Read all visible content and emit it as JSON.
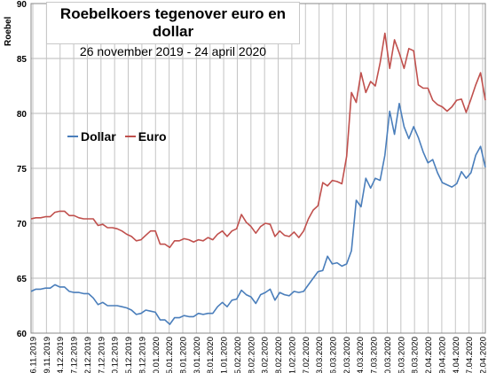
{
  "chart_data": {
    "type": "line",
    "title": "Roebelkoers tegenover euro en dollar",
    "subtitle": "26 november  2019 - 24 april 2020",
    "ylabel": "Roebel",
    "xlabel": "",
    "ylim": [
      60,
      90
    ],
    "yticks": [
      60,
      65,
      70,
      75,
      80,
      85,
      90
    ],
    "grid": true,
    "legend": "left, inside plot",
    "xtick_labels": [
      "26.11.2019",
      "29.11.2019",
      "04.12.2019",
      "07.12.2019",
      "12.12.2019",
      "17.12.2019",
      "20.12.2019",
      "25.12.2019",
      "28.12.2019",
      "10.01.2020",
      "15.01.2020",
      "18.01.2020",
      "23.01.2020",
      "28.01.2020",
      "31.01.2020",
      "05.02.2020",
      "08.02.2020",
      "13.02.2020",
      "18.02.2020",
      "21.02.2020",
      "27.02.2020",
      "03.03.2020",
      "06.03.2020",
      "12.03.2020",
      "14.03.2020",
      "17.03.2020",
      "20.03.2020",
      "25.03.2020",
      "28.03.2020",
      "02.04.2020",
      "09.04.2020",
      "14.04.2020",
      "17.04.2020",
      "22.04.2020"
    ],
    "series": [
      {
        "name": "Dollar",
        "color": "#4a7ebb",
        "values": [
          63.8,
          64.0,
          64.0,
          64.1,
          64.1,
          64.4,
          64.2,
          64.2,
          63.8,
          63.7,
          63.7,
          63.6,
          63.6,
          63.2,
          62.6,
          62.8,
          62.5,
          62.5,
          62.5,
          62.4,
          62.3,
          62.1,
          61.7,
          61.8,
          62.1,
          62.0,
          61.9,
          61.2,
          61.2,
          60.8,
          61.4,
          61.4,
          61.6,
          61.5,
          61.5,
          61.8,
          61.7,
          61.8,
          61.8,
          62.4,
          62.8,
          62.4,
          63.0,
          63.1,
          63.9,
          63.5,
          63.3,
          62.7,
          63.5,
          63.7,
          64.0,
          63.0,
          63.7,
          63.5,
          63.4,
          63.8,
          63.7,
          63.8,
          64.4,
          65.0,
          65.6,
          65.7,
          67.0,
          66.3,
          66.4,
          66.1,
          66.3,
          67.5,
          72.1,
          71.5,
          74.1,
          73.2,
          74.1,
          73.9,
          76.2,
          80.2,
          78.1,
          80.9,
          78.8,
          77.7,
          78.8,
          77.8,
          76.5,
          75.5,
          75.8,
          74.6,
          73.7,
          73.5,
          73.3,
          73.6,
          74.7,
          74.1,
          74.6,
          76.2,
          77.0,
          75.1
        ]
      },
      {
        "name": "Euro",
        "color": "#c0504d",
        "values": [
          70.4,
          70.5,
          70.5,
          70.6,
          70.6,
          71.0,
          71.1,
          71.1,
          70.7,
          70.7,
          70.5,
          70.4,
          70.4,
          70.4,
          69.8,
          69.9,
          69.6,
          69.6,
          69.5,
          69.3,
          69.0,
          68.8,
          68.4,
          68.5,
          68.9,
          69.3,
          69.3,
          68.1,
          68.1,
          67.8,
          68.4,
          68.4,
          68.6,
          68.5,
          68.3,
          68.5,
          68.4,
          68.7,
          68.5,
          69.0,
          69.3,
          68.8,
          69.3,
          69.5,
          70.8,
          70.1,
          69.7,
          69.1,
          69.7,
          70.0,
          69.9,
          68.8,
          69.3,
          68.9,
          68.8,
          69.2,
          68.7,
          69.3,
          70.4,
          71.2,
          71.6,
          73.7,
          73.4,
          73.9,
          73.8,
          73.6,
          76.1,
          81.9,
          81.0,
          83.7,
          81.9,
          82.9,
          82.5,
          84.6,
          87.3,
          84.1,
          86.7,
          85.5,
          84.1,
          85.9,
          85.7,
          82.6,
          82.3,
          82.3,
          81.2,
          80.8,
          80.6,
          80.2,
          80.6,
          81.2,
          81.3,
          80.1,
          81.3,
          82.6,
          83.7,
          81.2
        ]
      }
    ]
  }
}
